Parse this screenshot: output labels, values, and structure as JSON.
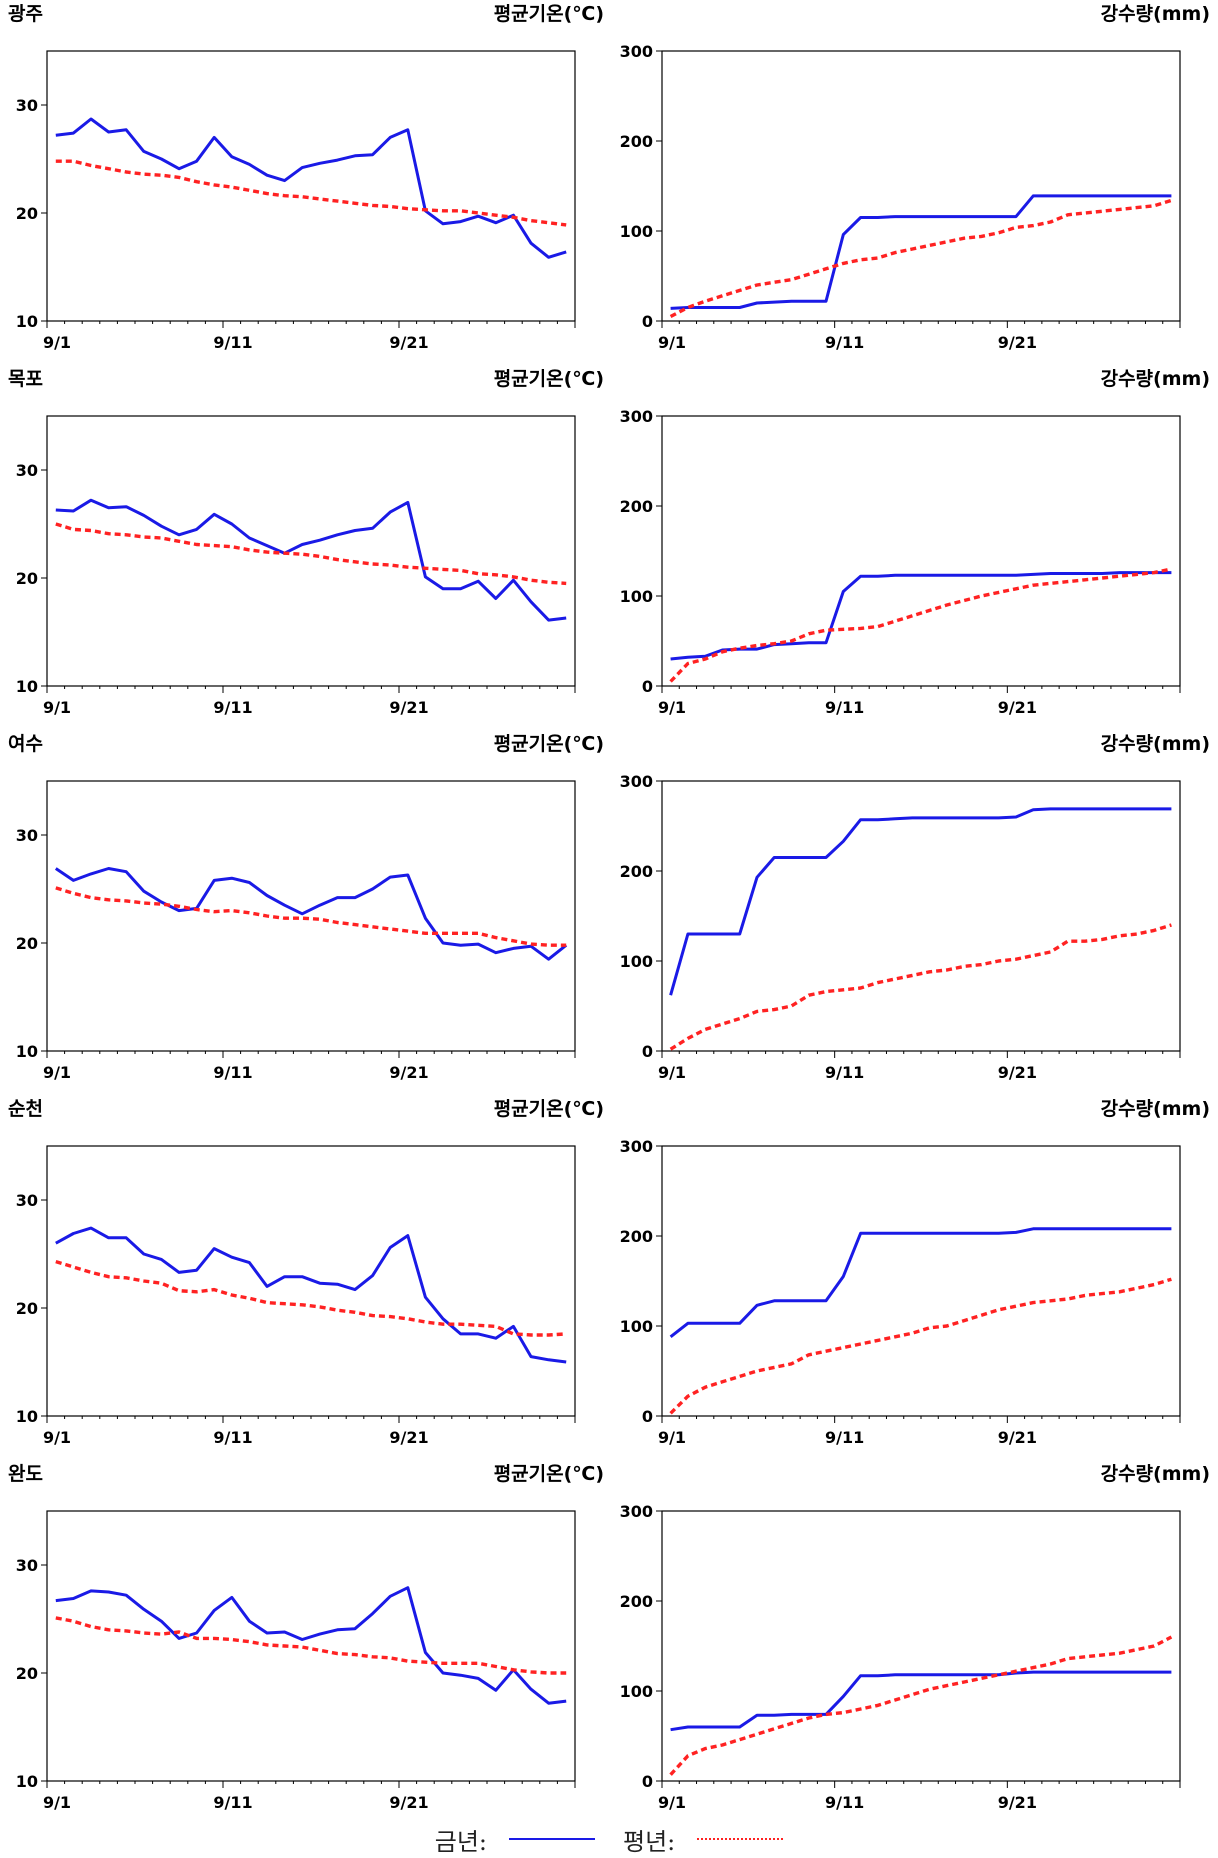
{
  "legend": {
    "current_label": "금년:",
    "normal_label": "평년:"
  },
  "colors": {
    "current": "#1a1ae6",
    "normal": "#ff2222"
  },
  "chart_data": [
    {
      "type": "line",
      "station": "광주",
      "ylabel": "평균기온(℃)",
      "xticks": [
        "9/1",
        "9/11",
        "9/21"
      ],
      "xlim": [
        1,
        31
      ],
      "ylim": [
        10,
        35
      ],
      "yticks": [
        10,
        20,
        30
      ],
      "series": [
        {
          "name": "금년",
          "values": [
            27.2,
            27.4,
            28.7,
            27.5,
            27.7,
            25.7,
            25.0,
            24.1,
            24.8,
            27.0,
            25.2,
            24.5,
            23.5,
            23.0,
            24.2,
            24.6,
            24.9,
            25.3,
            25.4,
            27.0,
            27.7,
            20.2,
            19.0,
            19.2,
            19.7,
            19.1,
            19.8,
            17.2,
            15.9,
            16.4
          ]
        },
        {
          "name": "평년",
          "values": [
            24.8,
            24.8,
            24.4,
            24.1,
            23.8,
            23.6,
            23.5,
            23.3,
            22.9,
            22.6,
            22.4,
            22.1,
            21.8,
            21.6,
            21.5,
            21.3,
            21.1,
            20.9,
            20.7,
            20.6,
            20.4,
            20.3,
            20.2,
            20.2,
            20.0,
            19.8,
            19.6,
            19.3,
            19.1,
            18.9
          ]
        }
      ]
    },
    {
      "type": "line",
      "station": "",
      "ylabel": "강수량(mm)",
      "xticks": [
        "9/1",
        "9/11",
        "9/21"
      ],
      "xlim": [
        1,
        31
      ],
      "ylim": [
        0,
        300
      ],
      "yticks": [
        0,
        100,
        200,
        300
      ],
      "series": [
        {
          "name": "금년",
          "values": [
            14,
            15,
            15,
            15,
            15,
            20,
            21,
            22,
            22,
            22,
            96,
            115,
            115,
            116,
            116,
            116,
            116,
            116,
            116,
            116,
            116,
            139,
            139,
            139,
            139,
            139,
            139,
            139,
            139,
            139
          ]
        },
        {
          "name": "평년",
          "values": [
            5,
            15,
            22,
            28,
            34,
            40,
            43,
            46,
            52,
            58,
            64,
            68,
            70,
            76,
            80,
            84,
            88,
            92,
            94,
            98,
            104,
            106,
            110,
            118,
            120,
            122,
            124,
            126,
            128,
            134
          ]
        }
      ]
    },
    {
      "type": "line",
      "station": "목포",
      "ylabel": "평균기온(℃)",
      "xticks": [
        "9/1",
        "9/11",
        "9/21"
      ],
      "xlim": [
        1,
        31
      ],
      "ylim": [
        10,
        35
      ],
      "yticks": [
        10,
        20,
        30
      ],
      "series": [
        {
          "name": "금년",
          "values": [
            26.3,
            26.2,
            27.2,
            26.5,
            26.6,
            25.8,
            24.8,
            24.0,
            24.5,
            25.9,
            25.0,
            23.7,
            23.0,
            22.3,
            23.1,
            23.5,
            24.0,
            24.4,
            24.6,
            26.1,
            27.0,
            20.1,
            19.0,
            19.0,
            19.7,
            18.1,
            19.8,
            17.8,
            16.1,
            16.3
          ]
        },
        {
          "name": "평년",
          "values": [
            25.0,
            24.5,
            24.4,
            24.1,
            24.0,
            23.8,
            23.7,
            23.4,
            23.1,
            23.0,
            22.9,
            22.6,
            22.4,
            22.3,
            22.2,
            22.0,
            21.7,
            21.5,
            21.3,
            21.2,
            21.0,
            20.9,
            20.8,
            20.7,
            20.4,
            20.3,
            20.1,
            19.8,
            19.6,
            19.5
          ]
        }
      ]
    },
    {
      "type": "line",
      "station": "",
      "ylabel": "강수량(mm)",
      "xticks": [
        "9/1",
        "9/11",
        "9/21"
      ],
      "xlim": [
        1,
        31
      ],
      "ylim": [
        0,
        300
      ],
      "yticks": [
        0,
        100,
        200,
        300
      ],
      "series": [
        {
          "name": "금년",
          "values": [
            30,
            32,
            33,
            40,
            41,
            41,
            46,
            47,
            48,
            48,
            105,
            122,
            122,
            123,
            123,
            123,
            123,
            123,
            123,
            123,
            123,
            124,
            125,
            125,
            125,
            125,
            126,
            126,
            126,
            126
          ]
        },
        {
          "name": "평년",
          "values": [
            5,
            25,
            30,
            38,
            42,
            45,
            47,
            50,
            58,
            62,
            63,
            64,
            66,
            72,
            78,
            84,
            90,
            95,
            100,
            104,
            108,
            112,
            114,
            116,
            118,
            120,
            122,
            124,
            126,
            130
          ]
        }
      ]
    },
    {
      "type": "line",
      "station": "여수",
      "ylabel": "평균기온(℃)",
      "xticks": [
        "9/1",
        "9/11",
        "9/21"
      ],
      "xlim": [
        1,
        31
      ],
      "ylim": [
        10,
        35
      ],
      "yticks": [
        10,
        20,
        30
      ],
      "series": [
        {
          "name": "금년",
          "values": [
            26.9,
            25.8,
            26.4,
            26.9,
            26.6,
            24.8,
            23.8,
            23.0,
            23.2,
            25.8,
            26.0,
            25.6,
            24.4,
            23.5,
            22.7,
            23.5,
            24.2,
            24.2,
            25.0,
            26.1,
            26.3,
            22.3,
            20.0,
            19.8,
            19.9,
            19.1,
            19.5,
            19.7,
            18.5,
            19.8
          ]
        },
        {
          "name": "평년",
          "values": [
            25.1,
            24.6,
            24.2,
            24.0,
            23.9,
            23.7,
            23.6,
            23.4,
            23.1,
            22.9,
            23.0,
            22.8,
            22.5,
            22.3,
            22.3,
            22.2,
            21.9,
            21.7,
            21.5,
            21.3,
            21.1,
            20.9,
            20.9,
            20.9,
            20.9,
            20.5,
            20.2,
            19.9,
            19.8,
            19.8
          ]
        }
      ]
    },
    {
      "type": "line",
      "station": "",
      "ylabel": "강수량(mm)",
      "xticks": [
        "9/1",
        "9/11",
        "9/21"
      ],
      "xlim": [
        1,
        31
      ],
      "ylim": [
        0,
        300
      ],
      "yticks": [
        0,
        100,
        200,
        300
      ],
      "series": [
        {
          "name": "금년",
          "values": [
            62,
            130,
            130,
            130,
            130,
            193,
            215,
            215,
            215,
            215,
            233,
            257,
            257,
            258,
            259,
            259,
            259,
            259,
            259,
            259,
            260,
            268,
            269,
            269,
            269,
            269,
            269,
            269,
            269,
            269
          ]
        },
        {
          "name": "평년",
          "values": [
            2,
            14,
            24,
            30,
            36,
            44,
            46,
            50,
            62,
            66,
            68,
            70,
            76,
            80,
            84,
            88,
            90,
            94,
            96,
            100,
            102,
            106,
            110,
            122,
            122,
            124,
            128,
            130,
            134,
            140
          ]
        }
      ]
    },
    {
      "type": "line",
      "station": "순천",
      "ylabel": "평균기온(℃)",
      "xticks": [
        "9/1",
        "9/11",
        "9/21"
      ],
      "xlim": [
        1,
        31
      ],
      "ylim": [
        10,
        35
      ],
      "yticks": [
        10,
        20,
        30
      ],
      "series": [
        {
          "name": "금년",
          "values": [
            26.0,
            26.9,
            27.4,
            26.5,
            26.5,
            25.0,
            24.5,
            23.3,
            23.5,
            25.5,
            24.7,
            24.2,
            22.0,
            22.9,
            22.9,
            22.3,
            22.2,
            21.7,
            23.0,
            25.6,
            26.7,
            21.0,
            19.0,
            17.6,
            17.6,
            17.2,
            18.3,
            15.5,
            15.2,
            15.0
          ]
        },
        {
          "name": "평년",
          "values": [
            24.3,
            23.8,
            23.3,
            22.9,
            22.8,
            22.5,
            22.3,
            21.6,
            21.5,
            21.7,
            21.2,
            20.9,
            20.5,
            20.4,
            20.3,
            20.1,
            19.8,
            19.6,
            19.3,
            19.2,
            19.0,
            18.7,
            18.5,
            18.5,
            18.4,
            18.3,
            17.6,
            17.5,
            17.5,
            17.6
          ]
        }
      ]
    },
    {
      "type": "line",
      "station": "",
      "ylabel": "강수량(mm)",
      "xticks": [
        "9/1",
        "9/11",
        "9/21"
      ],
      "xlim": [
        1,
        31
      ],
      "ylim": [
        0,
        300
      ],
      "yticks": [
        0,
        100,
        200,
        300
      ],
      "series": [
        {
          "name": "금년",
          "values": [
            88,
            103,
            103,
            103,
            103,
            123,
            128,
            128,
            128,
            128,
            155,
            203,
            203,
            203,
            203,
            203,
            203,
            203,
            203,
            203,
            204,
            208,
            208,
            208,
            208,
            208,
            208,
            208,
            208,
            208
          ]
        },
        {
          "name": "평년",
          "values": [
            3,
            22,
            32,
            38,
            44,
            50,
            54,
            58,
            68,
            72,
            76,
            80,
            84,
            88,
            92,
            98,
            100,
            106,
            112,
            118,
            122,
            126,
            128,
            130,
            134,
            136,
            138,
            142,
            146,
            152
          ]
        }
      ]
    },
    {
      "type": "line",
      "station": "완도",
      "ylabel": "평균기온(℃)",
      "xticks": [
        "9/1",
        "9/11",
        "9/21"
      ],
      "xlim": [
        1,
        31
      ],
      "ylim": [
        10,
        35
      ],
      "yticks": [
        10,
        20,
        30
      ],
      "series": [
        {
          "name": "금년",
          "values": [
            26.7,
            26.9,
            27.6,
            27.5,
            27.2,
            25.9,
            24.8,
            23.2,
            23.7,
            25.8,
            27.0,
            24.8,
            23.7,
            23.8,
            23.1,
            23.6,
            24.0,
            24.1,
            25.5,
            27.1,
            27.9,
            21.9,
            20.0,
            19.8,
            19.5,
            18.4,
            20.3,
            18.5,
            17.2,
            17.4
          ]
        },
        {
          "name": "평년",
          "values": [
            25.1,
            24.8,
            24.3,
            24.0,
            23.9,
            23.7,
            23.6,
            23.8,
            23.2,
            23.2,
            23.1,
            22.9,
            22.6,
            22.5,
            22.4,
            22.1,
            21.8,
            21.7,
            21.5,
            21.4,
            21.1,
            21.0,
            20.9,
            20.9,
            20.9,
            20.6,
            20.3,
            20.1,
            20.0,
            20.0
          ]
        }
      ]
    },
    {
      "type": "line",
      "station": "",
      "ylabel": "강수량(mm)",
      "xticks": [
        "9/1",
        "9/11",
        "9/21"
      ],
      "xlim": [
        1,
        31
      ],
      "ylim": [
        0,
        300
      ],
      "yticks": [
        0,
        100,
        200,
        300
      ],
      "series": [
        {
          "name": "금년",
          "values": [
            57,
            60,
            60,
            60,
            60,
            73,
            73,
            74,
            74,
            74,
            94,
            117,
            117,
            118,
            118,
            118,
            118,
            118,
            118,
            118,
            120,
            121,
            121,
            121,
            121,
            121,
            121,
            121,
            121,
            121
          ]
        },
        {
          "name": "평년",
          "values": [
            7,
            28,
            36,
            40,
            46,
            52,
            58,
            64,
            70,
            74,
            76,
            80,
            84,
            90,
            96,
            102,
            106,
            110,
            114,
            118,
            122,
            126,
            130,
            136,
            138,
            140,
            142,
            146,
            150,
            160
          ]
        }
      ]
    }
  ]
}
